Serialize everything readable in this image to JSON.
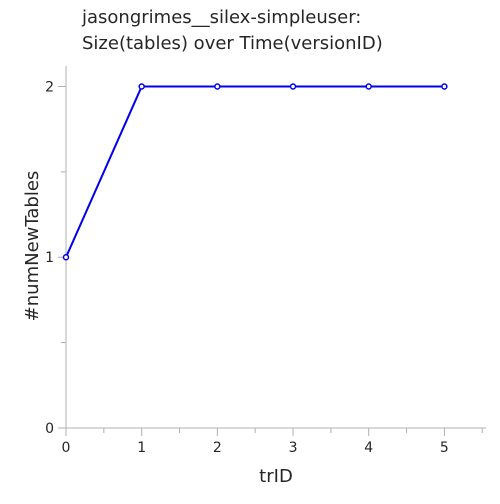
{
  "chart_data": {
    "type": "line",
    "title_lines": [
      "jasongrimes__silex-simpleuser:",
      "Size(tables) over Time(versionID)"
    ],
    "xlabel": "trID",
    "ylabel": "#numNewTables",
    "x": [
      0,
      1,
      2,
      3,
      4,
      5
    ],
    "series": [
      {
        "values": [
          1,
          2,
          2,
          2,
          2,
          2
        ],
        "color": "#0000ee"
      }
    ],
    "xlim": [
      0,
      5.55
    ],
    "ylim": [
      0,
      2.12
    ],
    "x_ticks": [
      0,
      1,
      2,
      3,
      4,
      5
    ],
    "x_tick_labels": [
      "0",
      "1",
      "2",
      "3",
      "4",
      "5"
    ],
    "y_ticks": [
      0,
      1,
      2
    ],
    "y_tick_labels": [
      "0",
      "1",
      "2"
    ],
    "minor_ticks_per_interval": 2,
    "grid": false
  }
}
